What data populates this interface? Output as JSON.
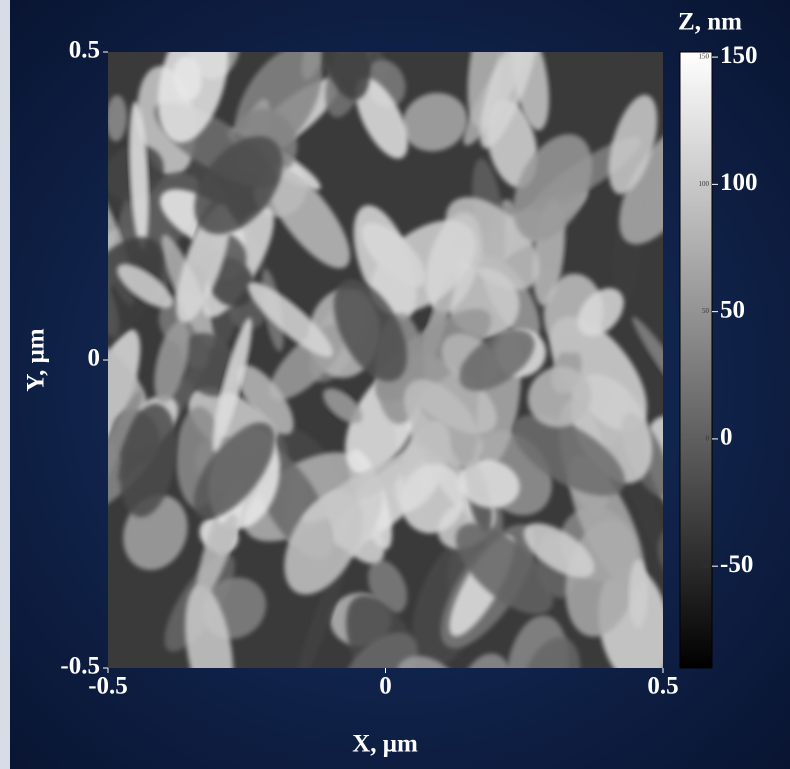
{
  "chart_data": {
    "type": "heatmap",
    "xlabel": "X, μm",
    "ylabel": "Y, μm",
    "colorbar_label": "Z, nm",
    "xlim": [
      -0.5,
      0.5
    ],
    "xticks": [
      -0.5,
      0,
      0.5
    ],
    "ylim": [
      -0.5,
      0.5
    ],
    "yticks": [
      -0.5,
      0,
      0.5
    ],
    "zlim": [
      -90,
      152
    ],
    "zticks": [
      -50,
      0,
      50,
      100,
      150
    ],
    "colormap": [
      "#000000",
      "#ffffff"
    ]
  }
}
